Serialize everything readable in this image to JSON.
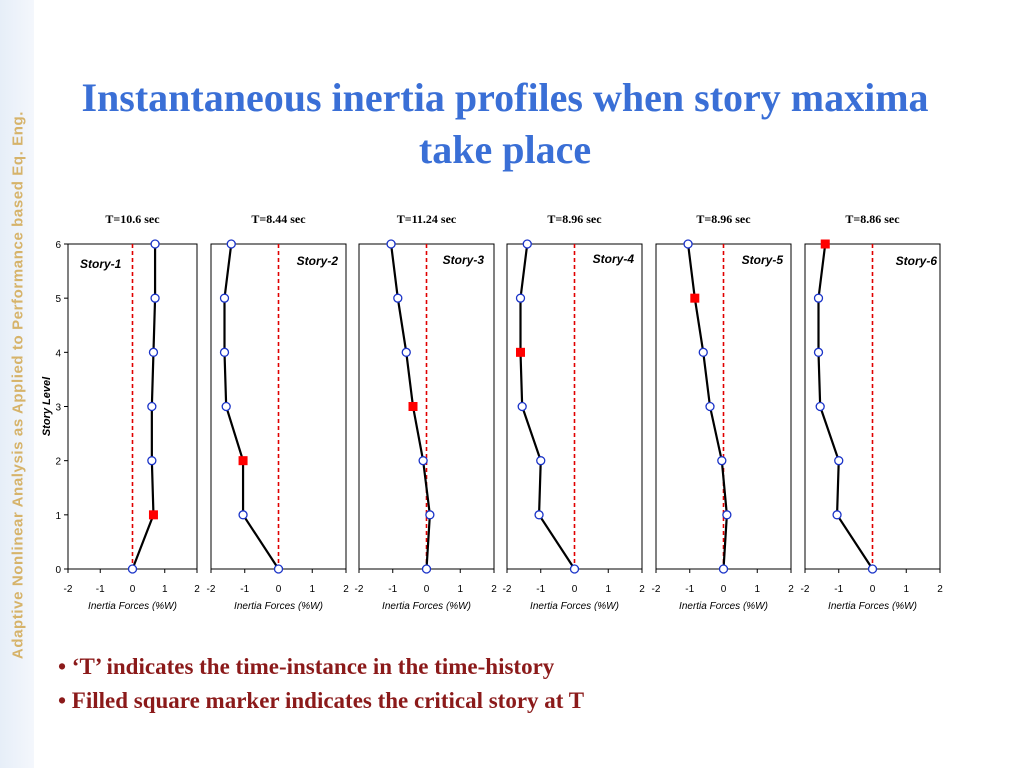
{
  "sidebar": {
    "text": "Adaptive Nonlinear Analysis as Applied to Performance based Eq. Eng."
  },
  "title": "Instantaneous inertia profiles when story maxima take place",
  "ylabel": "Story Level",
  "bullets": [
    "• ‘T’ indicates the time-instance in the time-history",
    "• Filled square marker indicates the critical story at T"
  ],
  "colors": {
    "title": "#3a6fd6",
    "bullets": "#8b1a1a",
    "sidebar_text": "#d6b36a",
    "critical": "#ff0000",
    "zero_line": "#e00000"
  },
  "chart_data": [
    {
      "type": "line",
      "title": "T=10.6 sec",
      "label": "Story-1",
      "xlabel": "Inertia Forces (%W)",
      "ylabel": "Story Level",
      "xlim": [
        -2,
        2
      ],
      "ylim": [
        0,
        6
      ],
      "xticks": [
        "-2",
        "-1",
        "0",
        "1",
        "2"
      ],
      "yticks": [
        "0",
        "1",
        "2",
        "3",
        "4",
        "5",
        "6"
      ],
      "x": [
        0,
        0.65,
        0.6,
        0.6,
        0.65,
        0.7,
        0.7
      ],
      "y": [
        0,
        1,
        2,
        3,
        4,
        5,
        6
      ],
      "critical_story": 1
    },
    {
      "type": "line",
      "title": "T=8.44 sec",
      "label": "Story-2",
      "xlabel": "Inertia Forces (%W)",
      "ylabel": "",
      "xlim": [
        -2,
        2
      ],
      "ylim": [
        0,
        6
      ],
      "xticks": [
        "-2",
        "-1",
        "0",
        "1",
        "2"
      ],
      "yticks": [],
      "x": [
        0,
        -1.05,
        -1.05,
        -1.55,
        -1.6,
        -1.6,
        -1.4
      ],
      "y": [
        0,
        1,
        2,
        3,
        4,
        5,
        6
      ],
      "critical_story": 2
    },
    {
      "type": "line",
      "title": "T=11.24 sec",
      "label": "Story-3",
      "xlabel": "Inertia Forces (%W)",
      "ylabel": "",
      "xlim": [
        -2,
        2
      ],
      "ylim": [
        0,
        6
      ],
      "xticks": [
        "-2",
        "-1",
        "0",
        "1",
        "2"
      ],
      "yticks": [],
      "x": [
        0,
        0.1,
        -0.1,
        -0.4,
        -0.6,
        -0.85,
        -1.05
      ],
      "y": [
        0,
        1,
        2,
        3,
        4,
        5,
        6
      ],
      "critical_story": 3
    },
    {
      "type": "line",
      "title": "T=8.96 sec",
      "label": "Story-4",
      "xlabel": "Inertia Forces (%W)",
      "ylabel": "",
      "xlim": [
        -2,
        2
      ],
      "ylim": [
        0,
        6
      ],
      "xticks": [
        "-2",
        "-1",
        "0",
        "1",
        "2"
      ],
      "yticks": [],
      "x": [
        0,
        -1.05,
        -1,
        -1.55,
        -1.6,
        -1.6,
        -1.4
      ],
      "y": [
        0,
        1,
        2,
        3,
        4,
        5,
        6
      ],
      "critical_story": 4
    },
    {
      "type": "line",
      "title": "T=8.96 sec",
      "label": "Story-5",
      "xlabel": "Inertia Forces (%W)",
      "ylabel": "",
      "xlim": [
        -2,
        2
      ],
      "ylim": [
        0,
        6
      ],
      "xticks": [
        "-2",
        "-1",
        "0",
        "1",
        "2"
      ],
      "yticks": [],
      "x": [
        0,
        0.1,
        -0.05,
        -0.4,
        -0.6,
        -0.85,
        -1.05
      ],
      "y": [
        0,
        1,
        2,
        3,
        4,
        5,
        6
      ],
      "critical_story": 5
    },
    {
      "type": "line",
      "title": "T=8.86 sec",
      "label": "Story-6",
      "xlabel": "Inertia Forces (%W)",
      "ylabel": "",
      "xlim": [
        -2,
        2
      ],
      "ylim": [
        0,
        6
      ],
      "xticks": [
        "-2",
        "-1",
        "0",
        "1",
        "2"
      ],
      "yticks": [],
      "x": [
        0,
        -1.05,
        -1,
        -1.55,
        -1.6,
        -1.6,
        -1.4
      ],
      "y": [
        0,
        1,
        2,
        3,
        4,
        5,
        6
      ],
      "critical_story": 6
    }
  ]
}
